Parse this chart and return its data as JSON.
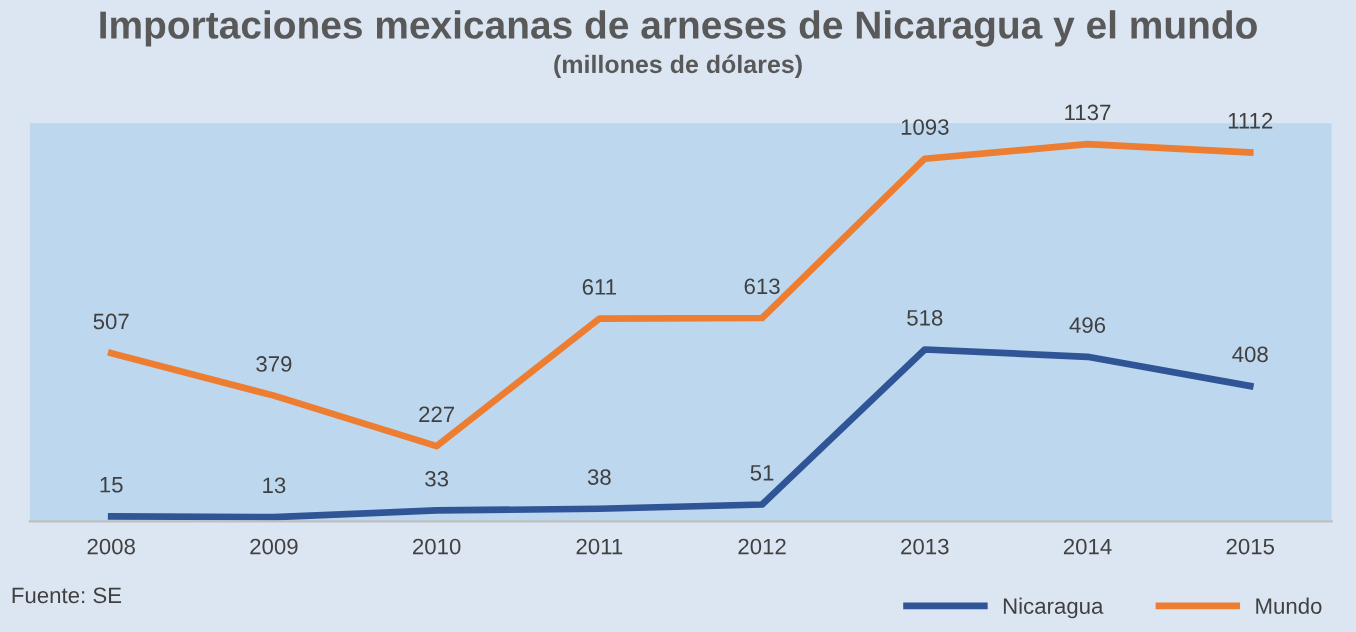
{
  "chart_data": {
    "type": "line",
    "title": "Importaciones mexicanas de arneses de Nicaragua y el mundo",
    "subtitle": "(millones de dólares)",
    "categories": [
      "2008",
      "2009",
      "2010",
      "2011",
      "2012",
      "2013",
      "2014",
      "2015"
    ],
    "series": [
      {
        "name": "Nicaragua",
        "color": "#2f5597",
        "values": [
          15,
          13,
          33,
          38,
          51,
          518,
          496,
          408
        ]
      },
      {
        "name": "Mundo",
        "color": "#ed7d31",
        "values": [
          507,
          379,
          227,
          611,
          613,
          1093,
          1137,
          1112
        ]
      }
    ],
    "ylim": [
      0,
      1200
    ],
    "tick_labels": "x",
    "data_labels": true,
    "grid": false,
    "legend": "bottom right",
    "marker": "none",
    "line_style": "solid",
    "annotations": [
      "Fuente: SE"
    ]
  }
}
